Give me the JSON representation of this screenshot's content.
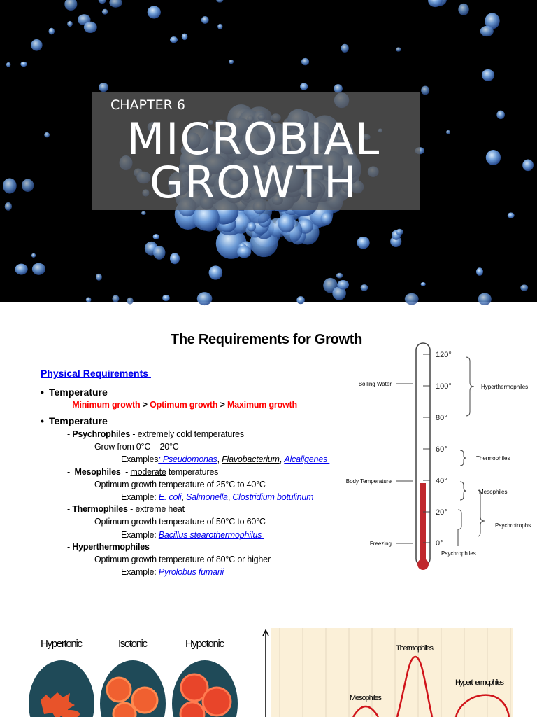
{
  "slide1": {
    "kicker": "CHAPTER 6",
    "title_lines": [
      "MICROBIAL",
      "GROWTH"
    ]
  },
  "slide2": {
    "title": "The Requirements for Growth",
    "section": "Physical Requirements ",
    "bullets": [
      {
        "label": "Temperature",
        "lines": [
          [
            {
              "text": "- ",
              "style": "plain"
            },
            {
              "text": "Minimum growth",
              "style": "red"
            },
            {
              "text": " > ",
              "style": "bold"
            },
            {
              "text": "Optimum growth",
              "style": "red"
            },
            {
              "text": " > ",
              "style": "bold"
            },
            {
              "text": "Maximum growth",
              "style": "red"
            }
          ]
        ]
      },
      {
        "label": "Temperature",
        "lines": [
          [
            {
              "text": "- ",
              "style": "plain"
            },
            {
              "text": "Psychrophiles",
              "style": "bold"
            },
            {
              "text": " - ",
              "style": "plain"
            },
            {
              "text": "extremely ",
              "style": "underline"
            },
            {
              "text": "cold temperatures",
              "style": "plain"
            }
          ],
          [
            {
              "text": "Grow from 0°C – 20°C",
              "style": "plain"
            }
          ],
          [
            {
              "text": "Examples",
              "style": "plain"
            },
            {
              "text": ": Pseudomonas",
              "style": "link"
            },
            {
              "text": ", ",
              "style": "plain"
            },
            {
              "text": "Flavobacterium",
              "style": "dark-link"
            },
            {
              "text": ", ",
              "style": "plain"
            },
            {
              "text": "Alcaligenes ",
              "style": "link"
            }
          ],
          [
            {
              "text": "-  ",
              "style": "plain"
            },
            {
              "text": "Mesophiles",
              "style": "bold"
            },
            {
              "text": "  - ",
              "style": "plain"
            },
            {
              "text": "moderate",
              "style": "underline"
            },
            {
              "text": " temperatures",
              "style": "plain"
            }
          ],
          [
            {
              "text": "Optimum growth temperature of 25°C to 40°C",
              "style": "plain"
            }
          ],
          [
            {
              "text": "Example: ",
              "style": "plain"
            },
            {
              "text": "E. coli",
              "style": "link"
            },
            {
              "text": ", ",
              "style": "plain"
            },
            {
              "text": "Salmonella",
              "style": "link"
            },
            {
              "text": ", ",
              "style": "plain"
            },
            {
              "text": "Clostridium botulinum ",
              "style": "link"
            }
          ],
          [
            {
              "text": "- ",
              "style": "plain"
            },
            {
              "text": "Thermophiles",
              "style": "bold"
            },
            {
              "text": " - ",
              "style": "plain"
            },
            {
              "text": "extreme",
              "style": "underline"
            },
            {
              "text": " heat",
              "style": "plain"
            }
          ],
          [
            {
              "text": "Optimum growth temperature of 50°C to 60°C",
              "style": "plain"
            }
          ],
          [
            {
              "text": "Example: ",
              "style": "plain"
            },
            {
              "text": "Bacillus stearothermophilus ",
              "style": "link"
            }
          ],
          [
            {
              "text": "- ",
              "style": "plain"
            },
            {
              "text": "Hyperthermophiles",
              "style": "bold"
            }
          ],
          [
            {
              "text": "Optimum growth temperature of 80°C or higher",
              "style": "plain"
            }
          ],
          [
            {
              "text": "Example: ",
              "style": "plain"
            },
            {
              "text": "Pyrolobus fumarii",
              "style": "blue-italic"
            }
          ]
        ]
      }
    ],
    "thermometer": {
      "scale": [
        "120°",
        "100°",
        "80°",
        "60°",
        "40°",
        "20°",
        "0°"
      ],
      "left_labels": [
        "Boiling Water",
        "Body Temperature",
        "Freezing"
      ],
      "right_labels": [
        "Hyperthermophiles",
        "Thermophiles",
        "Mesophiles",
        "Psychrotrophs",
        "Psychrophiles"
      ]
    }
  },
  "slide3": {
    "cell_labels": [
      "Hypertonic",
      "Isotonic",
      "Hypotonic"
    ],
    "graph_labels": [
      "Thermophiles",
      "Mesophiles",
      "Hyperthermophiles"
    ]
  }
}
